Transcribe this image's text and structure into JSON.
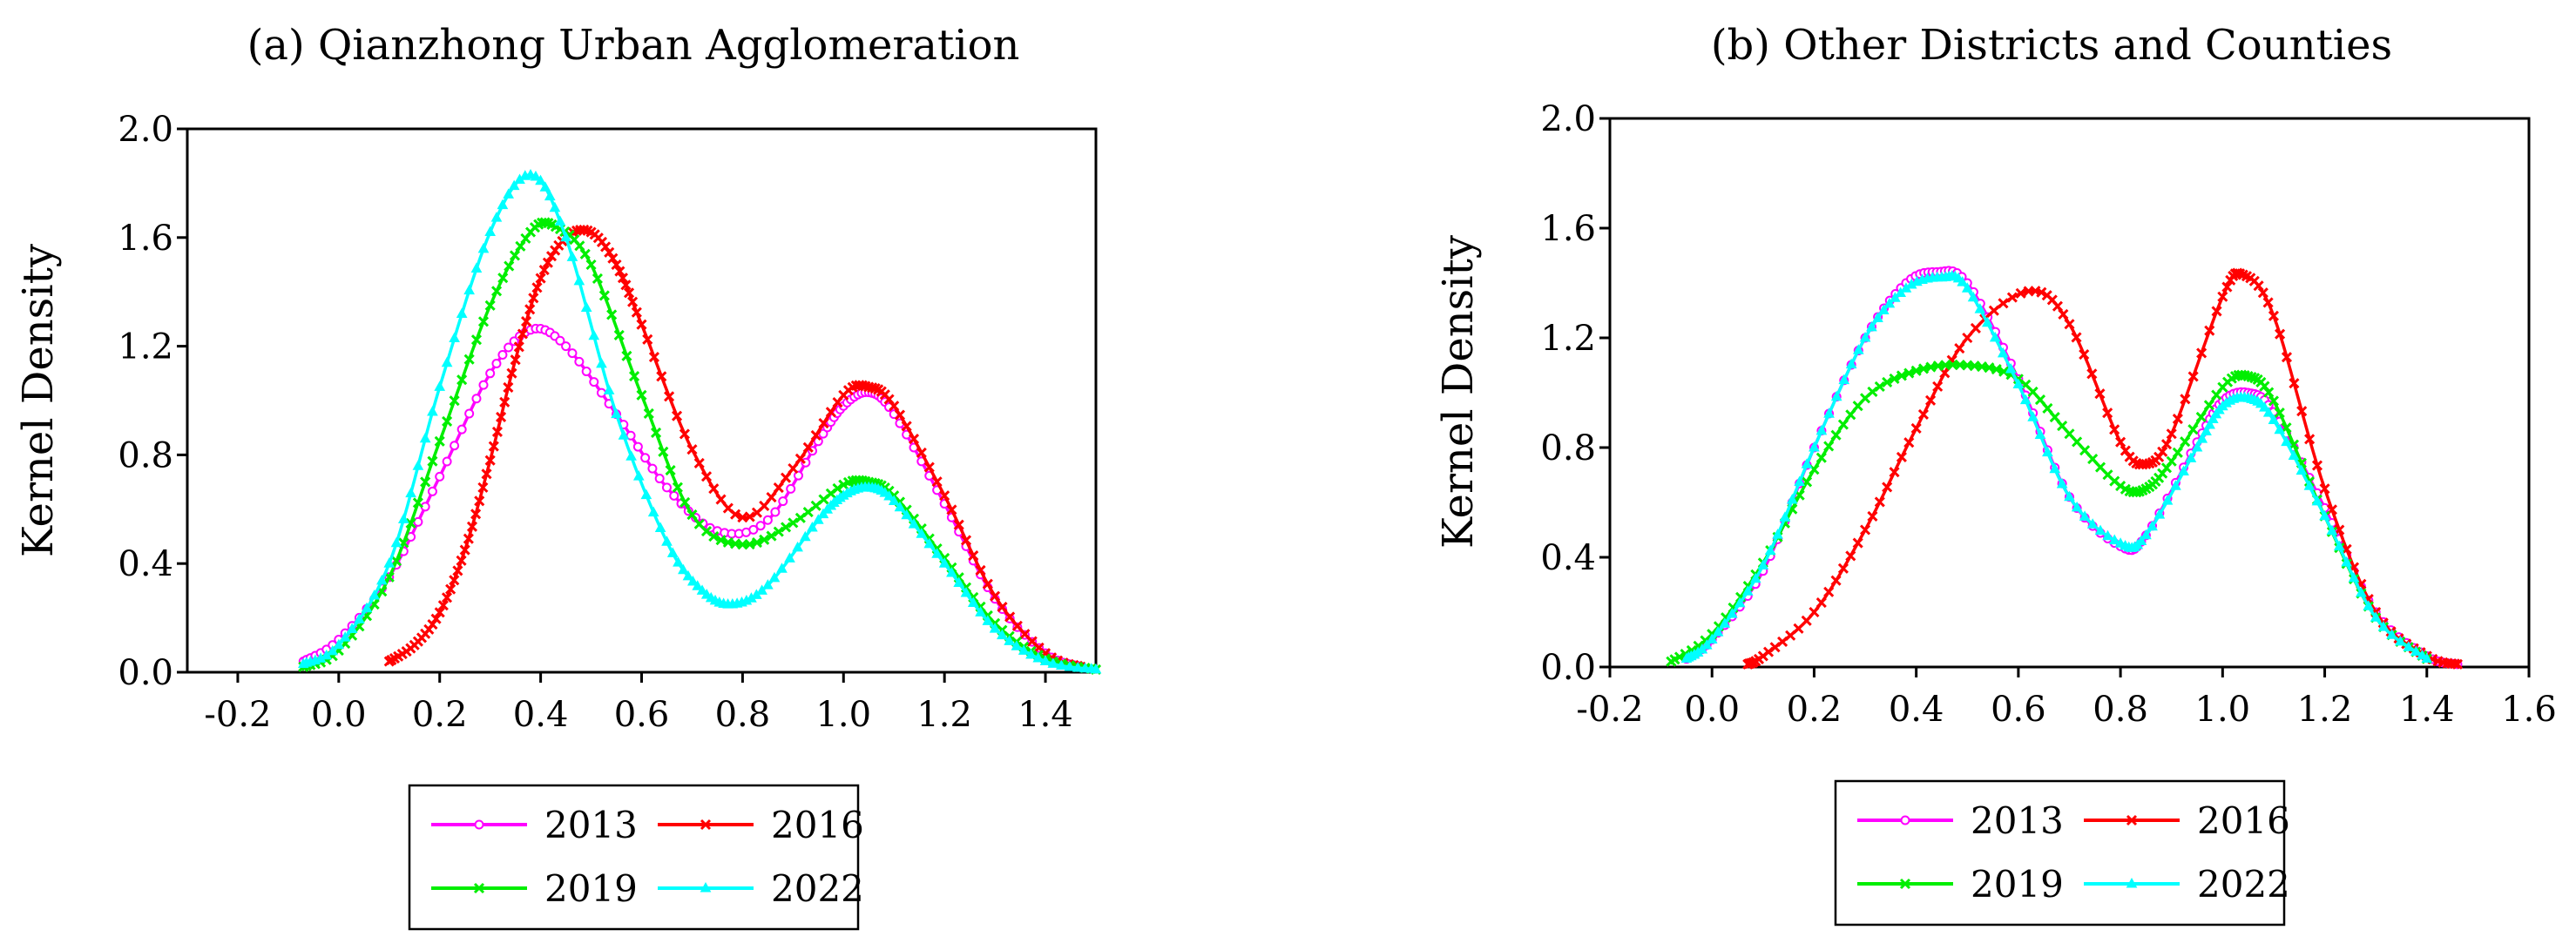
{
  "chart_data": [
    {
      "type": "line",
      "title": "(a) Qianzhong Urban Agglomeration",
      "xlabel": "",
      "ylabel": "Kernel Density",
      "xlim": [
        -0.3,
        1.5
      ],
      "ylim": [
        0,
        2.0
      ],
      "xticks": [
        "-0.2",
        "0.0",
        "0.2",
        "0.4",
        "0.6",
        "0.8",
        "1.0",
        "1.2",
        "1.4"
      ],
      "yticks": [
        "0.0",
        "0.4",
        "0.8",
        "1.2",
        "1.6",
        "2.0"
      ],
      "legend_position": "bottom",
      "series": [
        {
          "name": "2013",
          "color": "#ff00ff",
          "marker": "circle",
          "x": [
            -0.07,
            0.0,
            0.1,
            0.2,
            0.3,
            0.38,
            0.45,
            0.55,
            0.65,
            0.75,
            0.85,
            0.95,
            1.0,
            1.05,
            1.1,
            1.2,
            1.3,
            1.4,
            1.47
          ],
          "y": [
            0.04,
            0.12,
            0.35,
            0.72,
            1.1,
            1.26,
            1.2,
            0.95,
            0.68,
            0.52,
            0.56,
            0.85,
            0.98,
            1.03,
            0.95,
            0.62,
            0.27,
            0.07,
            0.02
          ]
        },
        {
          "name": "2016",
          "color": "#ff0000",
          "marker": "x",
          "x": [
            0.1,
            0.15,
            0.2,
            0.25,
            0.3,
            0.35,
            0.4,
            0.45,
            0.5,
            0.55,
            0.6,
            0.7,
            0.8,
            0.9,
            1.0,
            1.05,
            1.1,
            1.2,
            1.3,
            1.4,
            1.47
          ],
          "y": [
            0.04,
            0.1,
            0.22,
            0.45,
            0.78,
            1.15,
            1.45,
            1.6,
            1.62,
            1.5,
            1.28,
            0.82,
            0.57,
            0.75,
            1.02,
            1.05,
            0.98,
            0.65,
            0.28,
            0.07,
            0.02
          ]
        },
        {
          "name": "2019",
          "color": "#00ee00",
          "marker": "x",
          "x": [
            -0.07,
            0.0,
            0.1,
            0.2,
            0.3,
            0.38,
            0.43,
            0.5,
            0.6,
            0.7,
            0.8,
            0.9,
            1.0,
            1.05,
            1.1,
            1.2,
            1.3,
            1.4,
            1.5
          ],
          "y": [
            0.02,
            0.08,
            0.35,
            0.85,
            1.35,
            1.62,
            1.64,
            1.5,
            1.02,
            0.58,
            0.47,
            0.55,
            0.69,
            0.7,
            0.65,
            0.42,
            0.18,
            0.05,
            0.01
          ]
        },
        {
          "name": "2022",
          "color": "#00ffff",
          "marker": "triangle",
          "x": [
            -0.07,
            0.0,
            0.1,
            0.2,
            0.3,
            0.38,
            0.45,
            0.55,
            0.65,
            0.72,
            0.78,
            0.85,
            0.95,
            1.0,
            1.05,
            1.1,
            1.2,
            1.3,
            1.4,
            1.5
          ],
          "y": [
            0.03,
            0.1,
            0.4,
            1.05,
            1.62,
            1.83,
            1.6,
            0.95,
            0.48,
            0.3,
            0.25,
            0.32,
            0.56,
            0.65,
            0.68,
            0.63,
            0.4,
            0.16,
            0.04,
            0.01
          ]
        }
      ]
    },
    {
      "type": "line",
      "title": "(b) Other Districts and Counties",
      "xlabel": "",
      "ylabel": "Kernel Density",
      "xlim": [
        -0.2,
        1.6
      ],
      "ylim": [
        0,
        2.0
      ],
      "xticks": [
        "-0.2",
        "0.0",
        "0.2",
        "0.4",
        "0.6",
        "0.8",
        "1.0",
        "1.2",
        "1.4",
        "1.6"
      ],
      "yticks": [
        "0.0",
        "0.4",
        "0.8",
        "1.2",
        "1.6",
        "2.0"
      ],
      "legend_position": "bottom",
      "series": [
        {
          "name": "2013",
          "color": "#ff00ff",
          "marker": "circle",
          "x": [
            -0.05,
            0.0,
            0.1,
            0.2,
            0.3,
            0.38,
            0.44,
            0.5,
            0.6,
            0.7,
            0.8,
            0.85,
            0.95,
            1.0,
            1.05,
            1.1,
            1.2,
            1.3,
            1.4,
            1.46
          ],
          "y": [
            0.03,
            0.1,
            0.35,
            0.8,
            1.2,
            1.4,
            1.44,
            1.4,
            1.05,
            0.62,
            0.44,
            0.48,
            0.82,
            0.97,
            1.0,
            0.93,
            0.58,
            0.2,
            0.04,
            0.01
          ]
        },
        {
          "name": "2016",
          "color": "#ff0000",
          "marker": "x",
          "x": [
            0.07,
            0.1,
            0.2,
            0.3,
            0.4,
            0.5,
            0.62,
            0.7,
            0.8,
            0.85,
            0.9,
            1.0,
            1.04,
            1.1,
            1.2,
            1.3,
            1.4,
            1.46
          ],
          "y": [
            0.01,
            0.04,
            0.2,
            0.5,
            0.87,
            1.2,
            1.37,
            1.25,
            0.82,
            0.74,
            0.85,
            1.35,
            1.43,
            1.28,
            0.65,
            0.2,
            0.04,
            0.01
          ]
        },
        {
          "name": "2019",
          "color": "#00ee00",
          "marker": "x",
          "x": [
            -0.08,
            0.0,
            0.1,
            0.2,
            0.3,
            0.4,
            0.5,
            0.6,
            0.7,
            0.8,
            0.85,
            0.9,
            1.0,
            1.05,
            1.1,
            1.2,
            1.3,
            1.4
          ],
          "y": [
            0.02,
            0.12,
            0.38,
            0.72,
            0.98,
            1.08,
            1.1,
            1.05,
            0.85,
            0.66,
            0.65,
            0.75,
            1.02,
            1.06,
            0.97,
            0.55,
            0.18,
            0.03
          ]
        },
        {
          "name": "2022",
          "color": "#00ffff",
          "marker": "triangle",
          "x": [
            -0.05,
            0.0,
            0.1,
            0.2,
            0.3,
            0.38,
            0.45,
            0.5,
            0.6,
            0.7,
            0.8,
            0.85,
            0.95,
            1.0,
            1.05,
            1.1,
            1.2,
            1.3,
            1.4
          ],
          "y": [
            0.03,
            0.1,
            0.37,
            0.8,
            1.2,
            1.38,
            1.42,
            1.38,
            1.03,
            0.62,
            0.45,
            0.48,
            0.8,
            0.95,
            0.98,
            0.9,
            0.55,
            0.18,
            0.03
          ]
        }
      ]
    }
  ]
}
